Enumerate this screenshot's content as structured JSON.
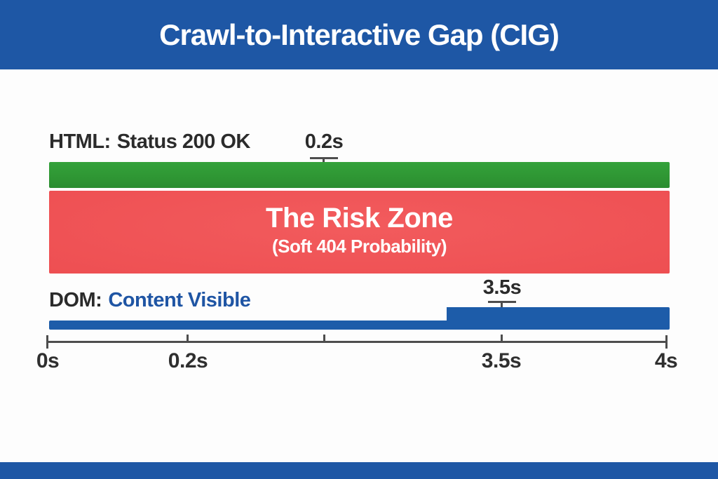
{
  "header": {
    "title": "Crawl-to-Interactive Gap (CIG)"
  },
  "rows": {
    "html": {
      "prefix": "HTML:",
      "label": "Status 200 OK",
      "time_marker": "0.2s"
    },
    "risk": {
      "title": "The Risk Zone",
      "subtitle": "(Soft 404 Probability)"
    },
    "dom": {
      "prefix": "DOM:",
      "label": "Content Visible",
      "time_marker": "3.5s"
    }
  },
  "axis": {
    "tick_labels": [
      {
        "text": "0s"
      },
      {
        "text": "0.2s"
      },
      {
        "text": "3.5s"
      },
      {
        "text": "4s"
      }
    ]
  },
  "colors": {
    "banner-blue": "#1e57a5",
    "bar-green": "#2f9734",
    "bar-red": "#ee4f52",
    "bar-red-dark": "#e23e42",
    "bar-blue": "#1d5ca9",
    "text-dark": "#2b2b2b",
    "text-blue": "#1f55a4",
    "axis-gray": "#4d4d4d",
    "background": "#fdfdfd"
  },
  "chart_data": {
    "type": "bar",
    "subtype": "horizontal-timeline",
    "title": "Crawl-to-Interactive Gap (CIG)",
    "x_axis": {
      "unit": "seconds",
      "tick_labels": [
        "0s",
        "0.2s",
        "3.5s",
        "4s"
      ],
      "tick_values": [
        0,
        0.2,
        3.5,
        4
      ],
      "range": [
        0,
        4
      ],
      "grid": false
    },
    "series": [
      {
        "name": "HTML: Status 200 OK",
        "color": "#2f9734",
        "extent_s": [
          0,
          4
        ],
        "annotation": "0.2s",
        "annotated_value_s": 0.2
      },
      {
        "name": "The Risk Zone",
        "subtitle": "(Soft 404 Probability)",
        "color": "#ee4f52",
        "extent_s": [
          0,
          4
        ]
      },
      {
        "name": "DOM: Content Visible",
        "color": "#1d5ca9",
        "extent_s": [
          0,
          4
        ],
        "annotation": "3.5s",
        "annotated_value_s": 3.5,
        "step_up_at_s": 3.5
      }
    ],
    "legend": "none"
  }
}
